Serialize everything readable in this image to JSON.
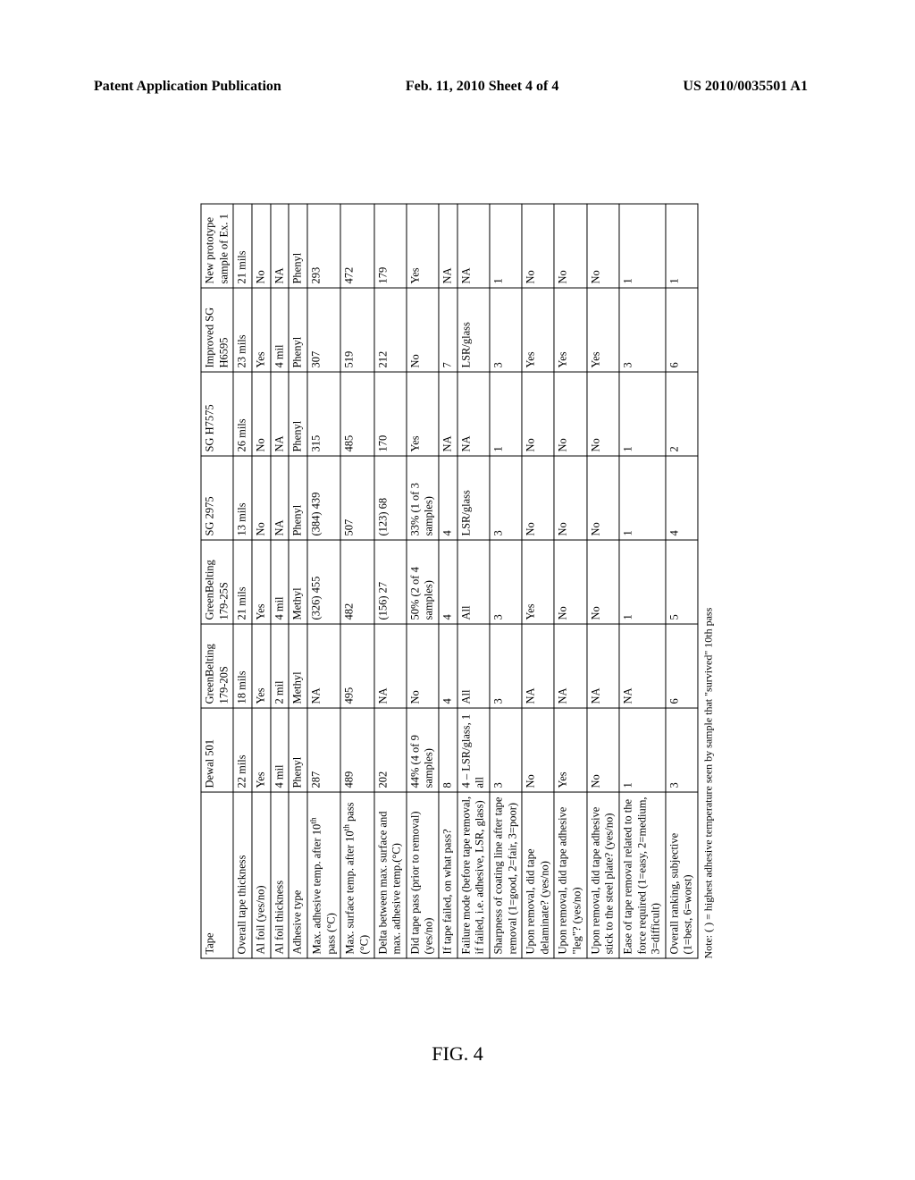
{
  "header": {
    "left": "Patent Application Publication",
    "center": "Feb. 11, 2010  Sheet 4 of 4",
    "right": "US 2010/0035501 A1"
  },
  "figure_label": "FIG. 4",
  "footnote": "Note: ( ) = highest adhesive temperature seen by sample that \"survived\" 10th pass",
  "table": {
    "columns": [
      "Tape",
      "Dewal 501",
      "GreenBelting 179-20S",
      "GreenBelting 179-25S",
      "SG 2975",
      "SG H7575",
      "Improved SG H6595",
      "New prototype sample of Ex. 1"
    ],
    "rows": [
      {
        "label": "Overall tape thickness",
        "cells": [
          "22 mils",
          "18 mils",
          "21 mils",
          "13 mils",
          "26 mils",
          "23 mils",
          "21 mils"
        ]
      },
      {
        "label": "Al foil (yes/no)",
        "cells": [
          "Yes",
          "Yes",
          "Yes",
          "No",
          "No",
          "Yes",
          "No"
        ]
      },
      {
        "label": "Al foil thickness",
        "cells": [
          "4 mil",
          "2 mil",
          "4 mil",
          "NA",
          "NA",
          "4 mil",
          "NA"
        ]
      },
      {
        "label": "Adhesive type",
        "cells": [
          "Phenyl",
          "Methyl",
          "Methyl",
          "Phenyl",
          "Phenyl",
          "Phenyl",
          "Phenyl"
        ]
      },
      {
        "label_html": "Max. adhesive temp. after 10<sup>th</sup> pass (°C)",
        "cells": [
          "287",
          "NA",
          "(326) 455",
          "(384) 439",
          "315",
          "307",
          "293"
        ]
      },
      {
        "label_html": "Max. surface temp. after 10<sup>th</sup> pass (°C)",
        "cells": [
          "489",
          "495",
          "482",
          "507",
          "485",
          "519",
          "472"
        ]
      },
      {
        "label": "Delta between max. surface and max. adhesive temp.(°C)",
        "cells": [
          "202",
          "NA",
          "(156) 27",
          "(123) 68",
          "170",
          "212",
          "179"
        ]
      },
      {
        "label": "Did tape pass (prior to removal) (yes/no)",
        "cells": [
          "44% (4 of 9 samples)",
          "No",
          "50% (2 of 4 samples)",
          "33% (1 of 3 samples)",
          "Yes",
          "No",
          "Yes"
        ]
      },
      {
        "label": "If tape failed, on what pass?",
        "cells": [
          "8",
          "4",
          "4",
          "4",
          "NA",
          "7",
          "NA"
        ]
      },
      {
        "label": "Failure mode (before tape removal, if failed, i.e. adhesive, LSR, glass)",
        "cells": [
          "4 – LSR/glass, 1 all",
          "All",
          "All",
          "LSR/glass",
          "NA",
          "LSR/glass",
          "NA"
        ]
      },
      {
        "label": "Sharpness of coating line after tape removal (1=good, 2=fair, 3=poor)",
        "cells": [
          "3",
          "3",
          "3",
          "3",
          "1",
          "3",
          "1"
        ]
      },
      {
        "label": "Upon removal, did tape delaminate? (yes/no)",
        "cells": [
          "No",
          "NA",
          "Yes",
          "No",
          "No",
          "Yes",
          "No"
        ]
      },
      {
        "label": "Upon removal, did tape adhesive \"leg\"? (yes/no)",
        "cells": [
          "Yes",
          "NA",
          "No",
          "No",
          "No",
          "Yes",
          "No"
        ]
      },
      {
        "label": "Upon removal, did tape adhesive stick to the steel plate? (yes/no)",
        "cells": [
          "No",
          "NA",
          "No",
          "No",
          "No",
          "Yes",
          "No"
        ]
      },
      {
        "label": "Ease of tape removal related to the force required (1=easy, 2=medium, 3=difficult)",
        "cells": [
          "1",
          "NA",
          "1",
          "1",
          "1",
          "3",
          "1"
        ]
      },
      {
        "label": "Overall ranking, subjective (1=best, 6=worst)",
        "cells": [
          "3",
          "6",
          "5",
          "4",
          "2",
          "6",
          "1"
        ]
      }
    ]
  }
}
